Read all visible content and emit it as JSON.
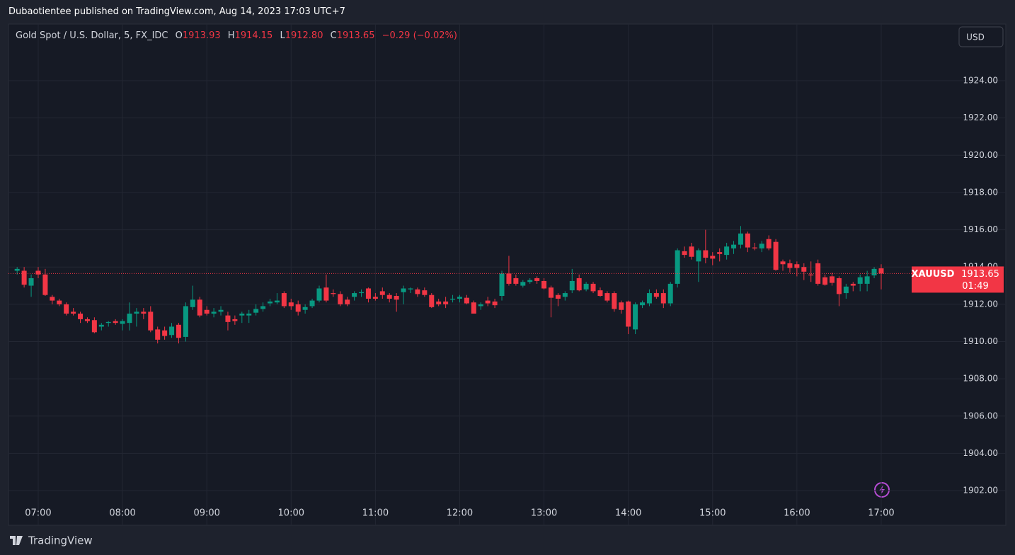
{
  "header": {
    "publisher_line": "Dubaotientee published on TradingView.com, Aug 14, 2023 17:03 UTC+7",
    "symbol": "Gold Spot / U.S. Dollar, 5, FX_IDC",
    "ohlc": [
      {
        "key": "O",
        "value": "1913.93"
      },
      {
        "key": "H",
        "value": "1914.15"
      },
      {
        "key": "L",
        "value": "1912.80"
      },
      {
        "key": "C",
        "value": "1913.65"
      }
    ],
    "change": "−0.29 (−0.02%)"
  },
  "currency": "USD",
  "price_tag": {
    "symbol": "XAUUSD",
    "price": "1913.65",
    "countdown": "01:49"
  },
  "footer": "TradingView",
  "chart_data": {
    "type": "candlestick",
    "up_color": "#089981",
    "down_color": "#f23645",
    "grid": true,
    "categories": [
      null,
      null,
      null,
      "07:00",
      null,
      null,
      null,
      null,
      null,
      null,
      null,
      null,
      null,
      null,
      null,
      "08:00",
      null,
      null,
      null,
      null,
      null,
      null,
      null,
      null,
      null,
      null,
      null,
      "09:00",
      null,
      null,
      null,
      null,
      null,
      null,
      null,
      null,
      null,
      null,
      null,
      "10:00",
      null,
      null,
      null,
      null,
      null,
      null,
      null,
      null,
      null,
      null,
      null,
      "11:00",
      null,
      null,
      null,
      null,
      null,
      null,
      null,
      null,
      null,
      null,
      null,
      "12:00",
      null,
      null,
      null,
      null,
      null,
      null,
      null,
      null,
      null,
      null,
      null,
      "13:00",
      null,
      null,
      null,
      null,
      null,
      null,
      null,
      null,
      null,
      null,
      null,
      "14:00",
      null,
      null,
      null,
      null,
      null,
      null,
      null,
      null,
      null,
      null,
      null,
      "15:00",
      null,
      null,
      null,
      null,
      null,
      null,
      null,
      null,
      null,
      null,
      null,
      "16:00",
      null,
      null,
      null,
      null,
      null,
      null,
      null,
      null,
      null,
      null,
      null,
      "17:00"
    ],
    "open": [
      1913.8,
      1913.8,
      1913.0,
      1913.8,
      1913.6,
      1912.4,
      1912.2,
      1912.0,
      1911.6,
      1911.5,
      1911.2,
      1911.15,
      1910.8,
      1911.0,
      1911.1,
      1910.95,
      1911.0,
      1911.5,
      1911.6,
      1911.6,
      1910.65,
      1910.6,
      1910.35,
      1910.9,
      1910.25,
      1911.85,
      1912.25,
      1911.7,
      1911.5,
      1911.6,
      1911.4,
      1911.2,
      1911.4,
      1911.4,
      1911.55,
      1911.75,
      1912.05,
      1912.1,
      1912.6,
      1912.1,
      1912.0,
      1911.7,
      1911.9,
      1912.2,
      1912.9,
      1912.6,
      1912.55,
      1912.25,
      1912.4,
      1912.6,
      1912.85,
      1912.4,
      1912.7,
      1912.5,
      1912.45,
      1912.65,
      1912.8,
      1912.8,
      1912.75,
      1912.5,
      1912.15,
      1912.15,
      1912.25,
      1912.3,
      1912.35,
      1912.1,
      1911.9,
      1912.2,
      1912.15,
      1912.45,
      1913.65,
      1913.4,
      1913.0,
      1913.2,
      1913.4,
      1913.25,
      1912.9,
      1912.5,
      1912.4,
      1912.75,
      1913.4,
      1912.8,
      1913.1,
      1912.75,
      1912.6,
      1912.6,
      1912.1,
      1912.15,
      1910.65,
      1911.95,
      1912.05,
      1912.6,
      1912.6,
      1912.05,
      1913.1,
      1914.85,
      1915.1,
      1914.3,
      1914.9,
      1914.6,
      1914.8,
      1914.65,
      1915.0,
      1915.2,
      1915.8,
      1915.05,
      1915.0,
      1915.5,
      1915.35,
      1914.3,
      1914.2,
      1914.15,
      1914.0,
      1913.6,
      1914.2,
      1913.45,
      1913.5,
      1913.4,
      1912.6,
      1913.1,
      1913.1,
      1913.1,
      1913.55,
      1913.93
    ],
    "high": [
      1914.0,
      1914.0,
      1913.6,
      1914.0,
      1913.9,
      1912.5,
      1912.3,
      1912.1,
      1911.8,
      1911.6,
      1911.3,
      1911.3,
      1911.0,
      1911.1,
      1911.2,
      1911.2,
      1912.1,
      1911.8,
      1911.8,
      1911.9,
      1910.8,
      1910.8,
      1911.0,
      1911.0,
      1912.1,
      1913.0,
      1912.4,
      1911.9,
      1911.8,
      1911.9,
      1911.6,
      1911.4,
      1911.6,
      1911.7,
      1912.0,
      1912.1,
      1912.3,
      1912.6,
      1912.7,
      1912.3,
      1912.2,
      1912.0,
      1912.3,
      1913.0,
      1913.6,
      1912.8,
      1912.7,
      1912.4,
      1912.7,
      1912.8,
      1912.9,
      1912.6,
      1912.9,
      1912.6,
      1912.6,
      1913.0,
      1912.9,
      1912.9,
      1912.9,
      1912.6,
      1912.3,
      1912.4,
      1912.5,
      1912.5,
      1912.5,
      1912.2,
      1912.1,
      1912.4,
      1912.3,
      1913.8,
      1914.6,
      1913.6,
      1913.3,
      1913.4,
      1913.5,
      1913.4,
      1913.0,
      1912.6,
      1912.7,
      1913.9,
      1913.6,
      1913.2,
      1913.2,
      1912.9,
      1912.7,
      1912.7,
      1912.2,
      1912.2,
      1912.1,
      1912.2,
      1912.8,
      1912.8,
      1912.8,
      1913.2,
      1915.0,
      1915.1,
      1915.3,
      1915.0,
      1916.0,
      1914.8,
      1915.0,
      1915.3,
      1915.4,
      1916.2,
      1915.9,
      1915.3,
      1915.4,
      1915.7,
      1915.5,
      1914.4,
      1914.4,
      1914.3,
      1914.2,
      1914.3,
      1914.4,
      1913.6,
      1913.7,
      1913.5,
      1913.1,
      1913.2,
      1913.6,
      1913.8,
      1914.0,
      1914.15
    ],
    "low": [
      1913.6,
      1912.9,
      1912.4,
      1913.4,
      1912.45,
      1912.0,
      1911.9,
      1911.4,
      1911.4,
      1911.0,
      1911.0,
      1910.45,
      1910.6,
      1910.8,
      1910.9,
      1910.6,
      1910.6,
      1910.8,
      1911.2,
      1910.5,
      1909.9,
      1910.1,
      1910.2,
      1909.9,
      1910.0,
      1911.7,
      1911.3,
      1911.4,
      1911.3,
      1911.4,
      1910.6,
      1910.9,
      1911.0,
      1911.0,
      1911.4,
      1911.6,
      1911.9,
      1912.0,
      1911.8,
      1911.7,
      1911.4,
      1911.5,
      1911.8,
      1912.1,
      1912.1,
      1912.4,
      1911.9,
      1911.9,
      1912.2,
      1912.4,
      1912.1,
      1912.2,
      1912.3,
      1912.1,
      1911.6,
      1912.0,
      1912.6,
      1912.4,
      1912.4,
      1911.8,
      1911.9,
      1911.8,
      1912.1,
      1912.1,
      1912.0,
      1911.5,
      1911.7,
      1911.9,
      1911.8,
      1912.2,
      1913.0,
      1913.0,
      1912.9,
      1913.1,
      1913.1,
      1912.8,
      1911.3,
      1911.9,
      1912.2,
      1912.6,
      1912.7,
      1912.7,
      1912.6,
      1912.4,
      1912.1,
      1911.6,
      1911.5,
      1910.4,
      1910.4,
      1911.8,
      1911.9,
      1912.3,
      1911.8,
      1911.9,
      1912.9,
      1914.5,
      1914.4,
      1913.2,
      1914.2,
      1914.1,
      1914.3,
      1914.4,
      1914.7,
      1915.0,
      1914.8,
      1914.9,
      1914.8,
      1914.9,
      1913.8,
      1913.8,
      1913.7,
      1913.5,
      1913.3,
      1913.2,
      1913.0,
      1913.0,
      1913.0,
      1911.9,
      1912.3,
      1912.7,
      1912.7,
      1912.7,
      1913.4,
      1912.8
    ],
    "close": [
      1913.9,
      1913.05,
      1913.4,
      1913.6,
      1912.5,
      1912.2,
      1912.0,
      1911.5,
      1911.5,
      1911.2,
      1911.1,
      1910.5,
      1910.9,
      1911.05,
      1911.0,
      1911.1,
      1911.5,
      1911.6,
      1911.5,
      1910.6,
      1910.1,
      1910.3,
      1910.8,
      1910.2,
      1911.9,
      1912.25,
      1911.4,
      1911.5,
      1911.6,
      1911.7,
      1911.05,
      1911.1,
      1911.5,
      1911.5,
      1911.75,
      1911.9,
      1912.15,
      1912.2,
      1911.9,
      1911.9,
      1911.6,
      1911.85,
      1912.2,
      1912.85,
      1912.2,
      1912.55,
      1912.0,
      1912.0,
      1912.6,
      1912.65,
      1912.3,
      1912.3,
      1912.5,
      1912.3,
      1912.25,
      1912.85,
      1912.85,
      1912.55,
      1912.5,
      1911.85,
      1912.0,
      1912.0,
      1912.3,
      1912.4,
      1912.05,
      1911.5,
      1912.0,
      1912.05,
      1911.95,
      1913.65,
      1913.1,
      1913.1,
      1913.2,
      1913.3,
      1913.25,
      1912.85,
      1912.35,
      1912.3,
      1912.6,
      1913.25,
      1912.75,
      1913.1,
      1912.7,
      1912.45,
      1912.2,
      1911.75,
      1911.7,
      1910.8,
      1912.0,
      1912.1,
      1912.6,
      1912.4,
      1912.05,
      1913.1,
      1914.9,
      1914.65,
      1914.55,
      1914.9,
      1914.5,
      1914.45,
      1914.7,
      1915.1,
      1915.2,
      1915.8,
      1915.05,
      1915.0,
      1915.25,
      1915.0,
      1913.85,
      1914.15,
      1913.95,
      1913.95,
      1913.75,
      1913.55,
      1913.1,
      1913.05,
      1913.15,
      1912.55,
      1912.95,
      1913.0,
      1913.45,
      1913.5,
      1913.9,
      1913.65
    ],
    "ylim": [
      1901.28,
      1927.04
    ],
    "yticks": [
      {
        "value": 1902,
        "label": "1902.00"
      },
      {
        "value": 1904,
        "label": "1904.00"
      },
      {
        "value": 1906,
        "label": "1906.00"
      },
      {
        "value": 1908,
        "label": "1908.00"
      },
      {
        "value": 1910,
        "label": "1910.00"
      },
      {
        "value": 1912,
        "label": "1912.00"
      },
      {
        "value": 1914,
        "label": "1914.00"
      },
      {
        "value": 1916,
        "label": "1916.00"
      },
      {
        "value": 1918,
        "label": "1918.00"
      },
      {
        "value": 1920,
        "label": "1920.00"
      },
      {
        "value": 1922,
        "label": "1922.00"
      },
      {
        "value": 1924,
        "label": "1924.00"
      }
    ]
  }
}
